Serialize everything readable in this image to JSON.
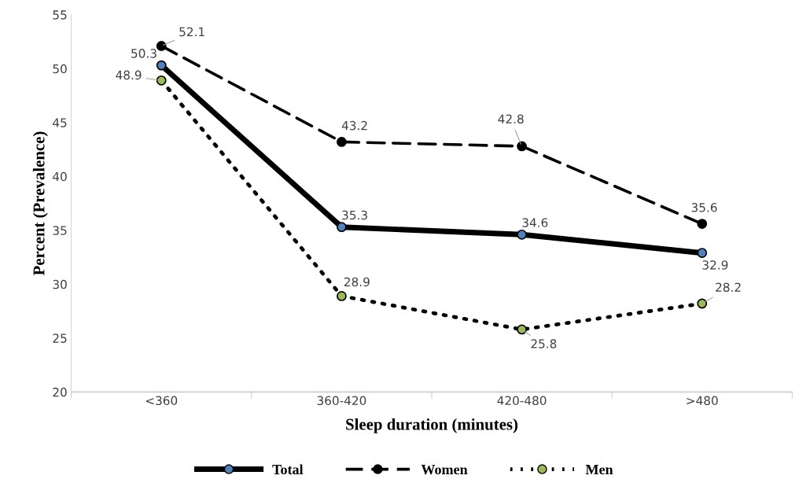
{
  "chart_data": {
    "type": "line",
    "xlabel": "Sleep duration (minutes)",
    "ylabel": "Percent (Prevalence)",
    "categories": [
      "<360",
      "360-420",
      "420-480",
      ">480"
    ],
    "series": [
      {
        "name": "Total",
        "color": "#000000",
        "colors": [
          "#4f81bd",
          "#4f81bd",
          "#4f81bd",
          "#4f81bd"
        ],
        "line_style": "solid",
        "values": [
          50.3,
          35.3,
          34.6,
          32.9
        ]
      },
      {
        "name": "Women",
        "color": "#000000",
        "colors": [
          "#000000",
          "#000000",
          "#000000",
          "#000000"
        ],
        "line_style": "dashed",
        "values": [
          52.1,
          43.2,
          42.8,
          35.6
        ]
      },
      {
        "name": "Men",
        "color": "#000000",
        "colors": [
          "#9bbb59",
          "#9bbb59",
          "#9bbb59",
          "#9bbb59"
        ],
        "line_style": "dotted",
        "values": [
          48.9,
          28.9,
          25.8,
          28.2
        ]
      }
    ],
    "ylim": [
      20,
      55
    ],
    "yticks": [
      20,
      25,
      30,
      35,
      40,
      45,
      50,
      55
    ],
    "marker": "circle",
    "data_labels": true,
    "grid": false,
    "legend": "bottom"
  }
}
